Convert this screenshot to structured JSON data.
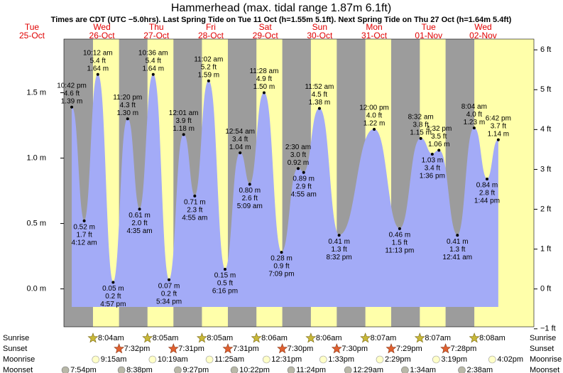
{
  "chart_data": {
    "type": "tide",
    "title": "Hammerhead (max. tidal range 1.87m 6.1ft)",
    "subtitle": "Times are CDT (UTC −5.0hrs). Last Spring Tide on Tue 11 Oct (h=1.55m 5.1ft). Next Spring Tide on Thu 27 Oct (h=1.64m 5.4ft)",
    "days": [
      {
        "name": "Tue",
        "date": "25-Oct"
      },
      {
        "name": "Wed",
        "date": "26-Oct"
      },
      {
        "name": "Thu",
        "date": "27-Oct"
      },
      {
        "name": "Fri",
        "date": "28-Oct"
      },
      {
        "name": "Sat",
        "date": "29-Oct"
      },
      {
        "name": "Sun",
        "date": "30-Oct"
      },
      {
        "name": "Mon",
        "date": "31-Oct"
      },
      {
        "name": "Tue",
        "date": "01-Nov"
      },
      {
        "name": "Wed",
        "date": "02-Nov"
      }
    ],
    "ylim": [
      -0.29,
      1.91
    ],
    "yticks": [
      {
        "value": 0,
        "label": "0.0 m"
      },
      {
        "value": 0.5,
        "label": "0.5 m"
      },
      {
        "value": 1,
        "label": "1.0 m"
      },
      {
        "value": 1.5,
        "label": "1.5 m"
      }
    ],
    "y2lim": [
      -0.95,
      6.27
    ],
    "y2ticks": [
      {
        "value": -1,
        "label": "−1 ft"
      },
      {
        "value": 0,
        "label": "0 ft"
      },
      {
        "value": 1,
        "label": "1 ft"
      },
      {
        "value": 2,
        "label": "2 ft"
      },
      {
        "value": 3,
        "label": "3 ft"
      },
      {
        "value": 4,
        "label": "4 ft"
      },
      {
        "value": 5,
        "label": "5 ft"
      },
      {
        "value": 6,
        "label": "6 ft"
      }
    ],
    "extremes": {
      "color": "#a3abf7",
      "times": [
        "10:42 pm",
        "4:12 am",
        "10:12 am",
        "4:57 pm",
        "11:20 pm",
        "4:35 am",
        "10:36 am",
        "5:34 pm",
        "12:01 am",
        "4:55 am",
        "11:02 am",
        "6:16 pm",
        "12:54 am",
        "5:09 am",
        "11:28 am",
        "7:09 pm",
        "2:30 am",
        "4:55 am",
        "11:52 am",
        "8:32 pm",
        "12:00 pm",
        "11:13 pm",
        "8:32 am",
        "1:36 pm",
        "4:32 pm",
        "12:41 am",
        "8:04 am",
        "1:44 pm",
        "6:42 pm"
      ],
      "values": [
        1.39,
        0.52,
        1.64,
        0.05,
        1.3,
        0.61,
        1.64,
        0.07,
        1.18,
        0.71,
        1.59,
        0.15,
        1.04,
        0.8,
        1.5,
        0.28,
        0.92,
        0.89,
        1.38,
        0.41,
        1.22,
        0.46,
        1.15,
        1.03,
        1.06,
        0.41,
        1.23,
        0.84,
        1.14
      ],
      "value_labels": [
        "1.39 m",
        "0.52 m",
        "1.64 m",
        "0.05 m",
        "1.30 m",
        "0.61 m",
        "1.64 m",
        "0.07 m",
        "1.18 m",
        "0.71 m",
        "1.59 m",
        "0.15 m",
        "1.04 m",
        "0.80 m",
        "1.50 m",
        "0.28 m",
        "0.92 m",
        "0.89 m",
        "1.38 m",
        "0.41 m",
        "1.22 m",
        "0.46 m",
        "1.15 m",
        "1.03 m",
        "1.06 m",
        "0.41 m",
        "1.23 m",
        "0.84 m",
        "1.14 m"
      ],
      "feet_labels": [
        "4.6 ft",
        "1.7 ft",
        "5.4 ft",
        "0.2 ft",
        "4.3 ft",
        "2.0 ft",
        "5.4 ft",
        "0.2 ft",
        "3.9 ft",
        "2.3 ft",
        "5.2 ft",
        "0.5 ft",
        "3.4 ft",
        "2.6 ft",
        "4.9 ft",
        "0.9 ft",
        "3.0 ft",
        "2.9 ft",
        "4.5 ft",
        "1.3 ft",
        "4.0 ft",
        "1.5 ft",
        "3.8 ft",
        "3.4 ft",
        "3.5 ft",
        "1.3 ft",
        "4.0 ft",
        "2.8 ft",
        "3.7 ft"
      ]
    },
    "rows": [
      {
        "name": "Sunrise",
        "times": [
          "8:04am",
          "8:05am",
          "8:05am",
          "8:06am",
          "8:06am",
          "8:07am",
          "8:07am",
          "8:08am"
        ]
      },
      {
        "name": "Sunset",
        "times": [
          "7:32pm",
          "7:31pm",
          "7:31pm",
          "7:30pm",
          "7:30pm",
          "7:29pm",
          "7:28pm"
        ]
      },
      {
        "name": "Moonrise",
        "times": [
          "9:15am",
          "10:19am",
          "11:25am",
          "12:31pm",
          "1:33pm",
          "2:29pm",
          "3:19pm",
          "4:02pm"
        ]
      },
      {
        "name": "Moonset",
        "times": [
          "7:54pm",
          "8:38pm",
          "9:27pm",
          "10:22pm",
          "11:24pm",
          "12:29am",
          "1:34am",
          "2:38am"
        ]
      }
    ]
  }
}
